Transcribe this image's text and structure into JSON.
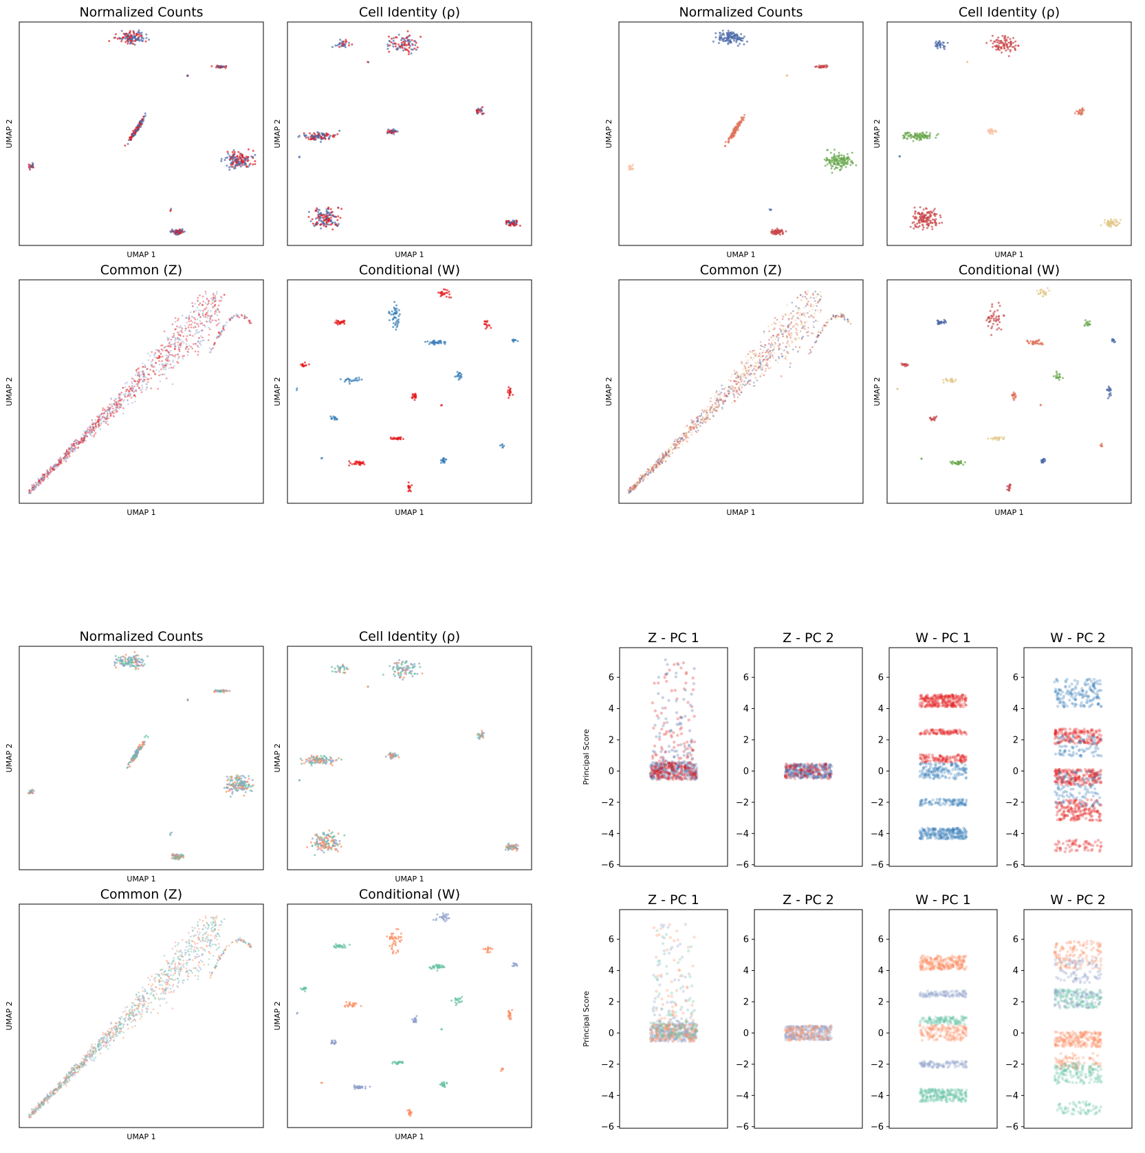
{
  "colors": {
    "set1_red": "#e41a1c",
    "set1_blue": "#377eb8",
    "set1_purple": "#5f6aa8",
    "set2_green": "#66c2a5",
    "set2_orange": "#fc8d62",
    "set2_purple": "#8da0cb",
    "ct_blue": "#4c6aa8",
    "ct_red": "#c9474a",
    "ct_yellow": "#e3c98a",
    "ct_salmon": "#e0735a",
    "ct_peach": "#f8c4a8",
    "ct_green": "#6aa84f"
  },
  "labels": {
    "umap_x": "UMAP 1",
    "umap_y": "UMAP 2",
    "principal": "Principal Score"
  },
  "chart_data": [
    {
      "id": "q1_nc",
      "type": "scatter",
      "title": "Normalized Counts",
      "xlabel": "UMAP 1",
      "ylabel": "UMAP 2",
      "layout": "clusters",
      "palette": [
        "set1_red",
        "ct_blue"
      ]
    },
    {
      "id": "q1_ci",
      "type": "scatter",
      "title": "Cell Identity (ρ)",
      "xlabel": "UMAP 1",
      "ylabel": "UMAP 2",
      "layout": "ci",
      "palette": [
        "set1_red",
        "ct_blue"
      ]
    },
    {
      "id": "q1_cz",
      "type": "scatter",
      "title": "Common (Z)",
      "xlabel": "UMAP 1",
      "ylabel": "UMAP 2",
      "layout": "common",
      "palette": [
        "set1_red",
        "set2_purple"
      ]
    },
    {
      "id": "q1_cw",
      "type": "scatter",
      "title": "Conditional (W)",
      "xlabel": "UMAP 1",
      "ylabel": "UMAP 2",
      "layout": "cond",
      "palette": [
        "set1_red",
        "set1_blue"
      ]
    },
    {
      "id": "q2_nc",
      "type": "scatter",
      "title": "Normalized Counts",
      "xlabel": "UMAP 1",
      "ylabel": "UMAP 2",
      "layout": "clusters",
      "palette": [
        "ct_blue",
        "ct_red",
        "ct_yellow",
        "ct_salmon",
        "ct_peach",
        "ct_green"
      ]
    },
    {
      "id": "q2_ci",
      "type": "scatter",
      "title": "Cell Identity (ρ)",
      "xlabel": "UMAP 1",
      "ylabel": "UMAP 2",
      "layout": "ci",
      "palette": [
        "ct_blue",
        "ct_red",
        "ct_yellow",
        "ct_salmon",
        "ct_peach",
        "ct_green"
      ]
    },
    {
      "id": "q2_cz",
      "type": "scatter",
      "title": "Common (Z)",
      "xlabel": "UMAP 1",
      "ylabel": "UMAP 2",
      "layout": "common",
      "palette": [
        "ct_blue",
        "ct_red",
        "ct_yellow",
        "ct_salmon",
        "ct_peach"
      ]
    },
    {
      "id": "q2_cw",
      "type": "scatter",
      "title": "Conditional (W)",
      "xlabel": "UMAP 1",
      "ylabel": "UMAP 2",
      "layout": "cond",
      "palette": [
        "ct_blue",
        "ct_red",
        "ct_yellow",
        "ct_salmon",
        "ct_green"
      ]
    },
    {
      "id": "q3_nc",
      "type": "scatter",
      "title": "Normalized Counts",
      "xlabel": "UMAP 1",
      "ylabel": "UMAP 2",
      "layout": "clusters",
      "palette": [
        "set2_green",
        "set2_orange",
        "set2_purple"
      ]
    },
    {
      "id": "q3_ci",
      "type": "scatter",
      "title": "Cell Identity (ρ)",
      "xlabel": "UMAP 1",
      "ylabel": "UMAP 2",
      "layout": "ci",
      "palette": [
        "set2_green",
        "set2_orange",
        "set2_purple"
      ]
    },
    {
      "id": "q3_cz",
      "type": "scatter",
      "title": "Common (Z)",
      "xlabel": "UMAP 1",
      "ylabel": "UMAP 2",
      "layout": "common",
      "palette": [
        "set2_green",
        "set2_orange",
        "set2_purple"
      ]
    },
    {
      "id": "q3_cw",
      "type": "scatter",
      "title": "Conditional (W)",
      "xlabel": "UMAP 1",
      "ylabel": "UMAP 2",
      "layout": "cond",
      "palette": [
        "set2_green",
        "set2_orange",
        "set2_purple"
      ]
    },
    {
      "id": "q4_zpc1_a",
      "type": "scatter",
      "title": "Z - PC 1",
      "ylabel": "Principal Score",
      "ylim": [
        -6.1,
        7.9
      ],
      "yticks": [
        -6,
        -4,
        -2,
        0,
        2,
        4,
        6
      ],
      "bands": [
        {
          "center": 0,
          "spread": 0.55,
          "color": "ct_blue",
          "n": 220
        },
        {
          "center": 0,
          "spread": 0.55,
          "color": "set1_red",
          "n": 160
        }
      ],
      "tail": {
        "from": 0.5,
        "to": 7.2,
        "colors": [
          "set1_red",
          "ct_blue"
        ],
        "n": 160
      }
    },
    {
      "id": "q4_zpc2_a",
      "type": "scatter",
      "title": "Z - PC 2",
      "ylim": [
        -6.1,
        7.9
      ],
      "yticks": [
        -6,
        -4,
        -2,
        0,
        2,
        4,
        6
      ],
      "bands": [
        {
          "center": 0,
          "spread": 0.45,
          "color": "ct_blue",
          "n": 260
        },
        {
          "center": 0,
          "spread": 0.5,
          "color": "set1_red",
          "n": 90
        }
      ]
    },
    {
      "id": "q4_wpc1_a",
      "type": "scatter",
      "title": "W - PC 1",
      "ylim": [
        -6.1,
        7.9
      ],
      "yticks": [
        -6,
        -4,
        -2,
        0,
        2,
        4,
        6
      ],
      "bands": [
        {
          "center": 4.5,
          "spread": 0.4,
          "color": "set1_red",
          "n": 230
        },
        {
          "center": 2.5,
          "spread": 0.15,
          "color": "set1_red",
          "n": 80
        },
        {
          "center": 0.8,
          "spread": 0.25,
          "color": "set1_red",
          "n": 110
        },
        {
          "center": 0,
          "spread": 0.5,
          "color": "set1_blue",
          "n": 150
        },
        {
          "center": -2,
          "spread": 0.2,
          "color": "set1_blue",
          "n": 90
        },
        {
          "center": -4,
          "spread": 0.35,
          "color": "set1_blue",
          "n": 210
        }
      ]
    },
    {
      "id": "q4_wpc2_a",
      "type": "scatter",
      "title": "W - PC 2",
      "ylim": [
        -6.1,
        7.9
      ],
      "yticks": [
        -6,
        -4,
        -2,
        0,
        2,
        4,
        6
      ],
      "bands": [
        {
          "center": 5,
          "spread": 0.9,
          "color": "set1_blue",
          "n": 160
        },
        {
          "center": 2.2,
          "spread": 0.5,
          "color": "set1_red",
          "n": 160
        },
        {
          "center": 1.6,
          "spread": 0.7,
          "color": "set1_blue",
          "n": 80
        },
        {
          "center": -0.4,
          "spread": 0.5,
          "color": "set1_red",
          "n": 200
        },
        {
          "center": -0.6,
          "spread": 0.6,
          "color": "set1_blue",
          "n": 60
        },
        {
          "center": -2.5,
          "spread": 0.7,
          "color": "set1_red",
          "n": 170
        },
        {
          "center": -1.8,
          "spread": 0.5,
          "color": "set1_blue",
          "n": 50
        },
        {
          "center": -4.8,
          "spread": 0.4,
          "color": "set1_red",
          "n": 60
        }
      ]
    },
    {
      "id": "q4_zpc1_b",
      "type": "scatter",
      "title": "Z - PC 1",
      "ylabel": "Principal Score",
      "ylim": [
        -6.1,
        7.9
      ],
      "yticks": [
        -6,
        -4,
        -2,
        0,
        2,
        4,
        6
      ],
      "bands": [
        {
          "center": 0,
          "spread": 0.55,
          "color": "set2_purple",
          "n": 220
        },
        {
          "center": 0,
          "spread": 0.55,
          "color": "set2_orange",
          "n": 140
        },
        {
          "center": 0.2,
          "spread": 0.55,
          "color": "set2_green",
          "n": 80
        }
      ],
      "tail": {
        "from": 0.5,
        "to": 7.2,
        "colors": [
          "set2_orange",
          "set2_green",
          "set2_purple"
        ],
        "n": 170
      }
    },
    {
      "id": "q4_zpc2_b",
      "type": "scatter",
      "title": "Z - PC 2",
      "ylim": [
        -6.1,
        7.9
      ],
      "yticks": [
        -6,
        -4,
        -2,
        0,
        2,
        4,
        6
      ],
      "bands": [
        {
          "center": 0,
          "spread": 0.45,
          "color": "set2_purple",
          "n": 240
        },
        {
          "center": 0,
          "spread": 0.5,
          "color": "set2_orange",
          "n": 110
        }
      ]
    },
    {
      "id": "q4_wpc1_b",
      "type": "scatter",
      "title": "W - PC 1",
      "ylim": [
        -6.1,
        7.9
      ],
      "yticks": [
        -6,
        -4,
        -2,
        0,
        2,
        4,
        6
      ],
      "bands": [
        {
          "center": 4.5,
          "spread": 0.45,
          "color": "set2_orange",
          "n": 230
        },
        {
          "center": 2.5,
          "spread": 0.2,
          "color": "set2_purple",
          "n": 90
        },
        {
          "center": 0.8,
          "spread": 0.25,
          "color": "set2_green",
          "n": 110
        },
        {
          "center": 0,
          "spread": 0.5,
          "color": "set2_orange",
          "n": 150
        },
        {
          "center": -2,
          "spread": 0.2,
          "color": "set2_purple",
          "n": 90
        },
        {
          "center": -4,
          "spread": 0.4,
          "color": "set2_green",
          "n": 210
        }
      ]
    },
    {
      "id": "q4_wpc2_b",
      "type": "scatter",
      "title": "W - PC 2",
      "ylim": [
        -6.1,
        7.9
      ],
      "yticks": [
        -6,
        -4,
        -2,
        0,
        2,
        4,
        6
      ],
      "bands": [
        {
          "center": 5,
          "spread": 0.9,
          "color": "set2_orange",
          "n": 130
        },
        {
          "center": 4,
          "spread": 0.8,
          "color": "set2_purple",
          "n": 80
        },
        {
          "center": 2.2,
          "spread": 0.6,
          "color": "set2_green",
          "n": 140
        },
        {
          "center": 2.2,
          "spread": 0.6,
          "color": "set2_purple",
          "n": 70
        },
        {
          "center": -0.4,
          "spread": 0.5,
          "color": "set2_orange",
          "n": 200
        },
        {
          "center": -2.6,
          "spread": 0.7,
          "color": "set2_green",
          "n": 150
        },
        {
          "center": -1.8,
          "spread": 0.5,
          "color": "set2_orange",
          "n": 60
        },
        {
          "center": -4.8,
          "spread": 0.4,
          "color": "set2_green",
          "n": 60
        }
      ]
    }
  ]
}
